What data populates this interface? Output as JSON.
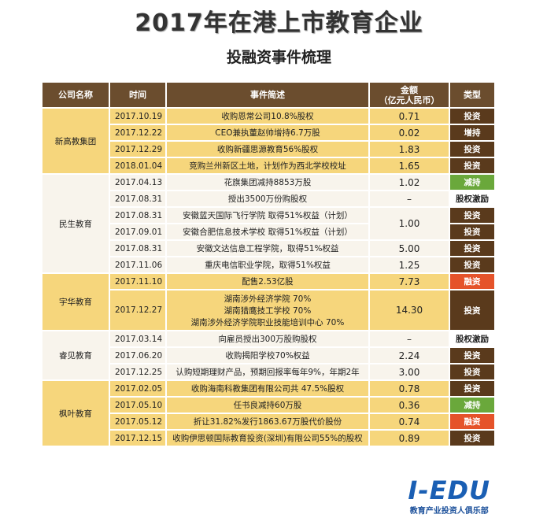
{
  "title": "2017年在港上市教育企业",
  "subtitle": "投融资事件梳理",
  "table": {
    "header": [
      "公司名称",
      "时间",
      "事件简述",
      [
        "金额",
        "（亿元人民币）"
      ],
      "类型"
    ],
    "groups": [
      {
        "company": "新高教集团",
        "color": "#f6d67c",
        "rows": [
          {
            "date": "2017.10.19",
            "event": "收购恩常公司10.8%股权",
            "amount": "0.71",
            "type": "投资",
            "type_color": "#5a3a1c"
          },
          {
            "date": "2017.12.22",
            "event": "CEO兼执董赵帅增持6.7万股",
            "amount": "0.02",
            "type": "增持",
            "type_color": "#5a3a1c"
          },
          {
            "date": "2017.12.29",
            "event": "收购新疆思源教育56%股权",
            "amount": "1.83",
            "type": "投资",
            "type_color": "#5a3a1c"
          },
          {
            "date": "2018.01.04",
            "event": "竞购兰州新区土地，计划作为西北学校校址",
            "amount": "1.65",
            "type": "投资",
            "type_color": "#5a3a1c"
          }
        ]
      },
      {
        "company": "民生教育",
        "color": "#f8f4ec",
        "rows": [
          {
            "date": "2017.04.13",
            "event": "花旗集团减持8853万股",
            "amount": "1.02",
            "type": "减持",
            "type_color": "#6aa83b"
          },
          {
            "date": "2017.08.31",
            "event": "授出3500万份购股权",
            "amount": "–",
            "type": "股权激励",
            "type_color": "#ffffff"
          },
          {
            "date": "2017.08.31",
            "event": "安徽蓝天国际飞行学院 取得51%权益（计划）",
            "amount": "1.00",
            "type": "投资",
            "type_color": "#5a3a1c"
          },
          {
            "date": "2017.09.01",
            "event": "安徽合肥信息技术学校 取得51%权益（计划）",
            "type": "投资",
            "type_color": "#5a3a1c"
          },
          {
            "date": "2017.08.31",
            "event": "安徽文达信息工程学院，取得51%权益",
            "amount": "5.00",
            "type": "投资",
            "type_color": "#5a3a1c"
          },
          {
            "date": "2017.11.06",
            "event": "重庆电信职业学院，取得51%权益",
            "amount": "1.25",
            "type": "投资",
            "type_color": "#5a3a1c"
          }
        ]
      },
      {
        "company": "宇华教育",
        "color": "#f6d67c",
        "rows": [
          {
            "date": "2017.11.10",
            "event": "配售2.53亿股",
            "amount": "7.73",
            "type": "融资",
            "type_color": "#e5532a"
          },
          {
            "date": "2017.12.27",
            "event": [
              "湖南涉外经济学院 70%",
              "湖南猎鹰技工学校 70%",
              "湖南涉外经济学院职业技能培训中心 70%"
            ],
            "amount": "14.30",
            "type": "投资",
            "type_color": "#5a3a1c"
          }
        ]
      },
      {
        "company": "睿见教育",
        "color": "#f8f4ec",
        "rows": [
          {
            "date": "2017.03.14",
            "event": "向雇员授出300万股购股权",
            "amount": "–",
            "type": "股权激励",
            "type_color": "#ffffff"
          },
          {
            "date": "2017.06.20",
            "event": "收购揭阳学校70%权益",
            "amount": "2.24",
            "type": "投资",
            "type_color": "#5a3a1c"
          },
          {
            "date": "2017.12.25",
            "event": "认购短期理财产品，预期回报率每年9%，年期2年",
            "amount": "3.00",
            "type": "投资",
            "type_color": "#5a3a1c"
          }
        ]
      },
      {
        "company": "枫叶教育",
        "color": "#f6d67c",
        "rows": [
          {
            "date": "2017.02.05",
            "event": "收购海南科教集团有限公司共 47.5%股权",
            "amount": "0.78",
            "type": "投资",
            "type_color": "#5a3a1c"
          },
          {
            "date": "2017.05.10",
            "event": "任书良减持60万股",
            "amount": "0.36",
            "type": "减持",
            "type_color": "#6aa83b"
          },
          {
            "date": "2017.05.12",
            "event": "折让31.82%发行1863.67万股代价股份",
            "amount": "0.74",
            "type": "融资",
            "type_color": "#e5532a"
          },
          {
            "date": "2017.12.15",
            "event": "收购伊思顿国际教育投资(深圳)有限公司55%的股权",
            "amount": "0.89",
            "type": "投资",
            "type_color": "#5a3a1c"
          }
        ]
      }
    ]
  },
  "logo": {
    "name": "I-EDU",
    "tagline": "教育产业投资人俱乐部"
  }
}
